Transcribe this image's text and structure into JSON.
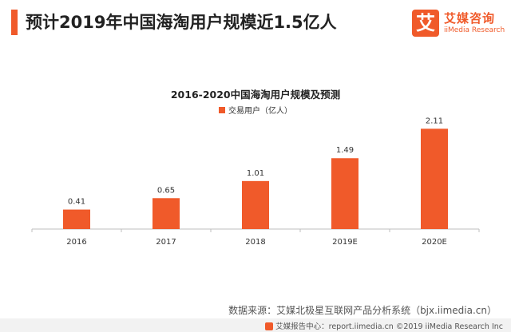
{
  "headline": "预计2019年中国海淘用户规模近1.5亿人",
  "logo": {
    "mark": "艾",
    "name": "艾媒咨询",
    "sub": "iiMedia Research"
  },
  "source_note": "数据来源：艾媒北极星互联网产品分析系统（bjx.iimedia.cn）",
  "copyright": "艾媒报告中心：report.iimedia.cn ©2019  iiMedia Research Inc",
  "colors": {
    "accent": "#f05a2a",
    "bar": "#f05a2a",
    "axis": "#bfbfbf"
  },
  "chart_data": {
    "type": "bar",
    "title": "2016-2020中国海淘用户规模及预测",
    "categories": [
      "2016",
      "2017",
      "2018",
      "2019E",
      "2020E"
    ],
    "series": [
      {
        "name": "交易用户（亿人）",
        "values": [
          0.41,
          0.65,
          1.01,
          1.49,
          2.11
        ]
      }
    ],
    "value_labels": [
      "0.41",
      "0.65",
      "1.01",
      "1.49",
      "2.11"
    ],
    "ylim": [
      0,
      2.3
    ],
    "grid": false,
    "legend_position": "top-center"
  }
}
